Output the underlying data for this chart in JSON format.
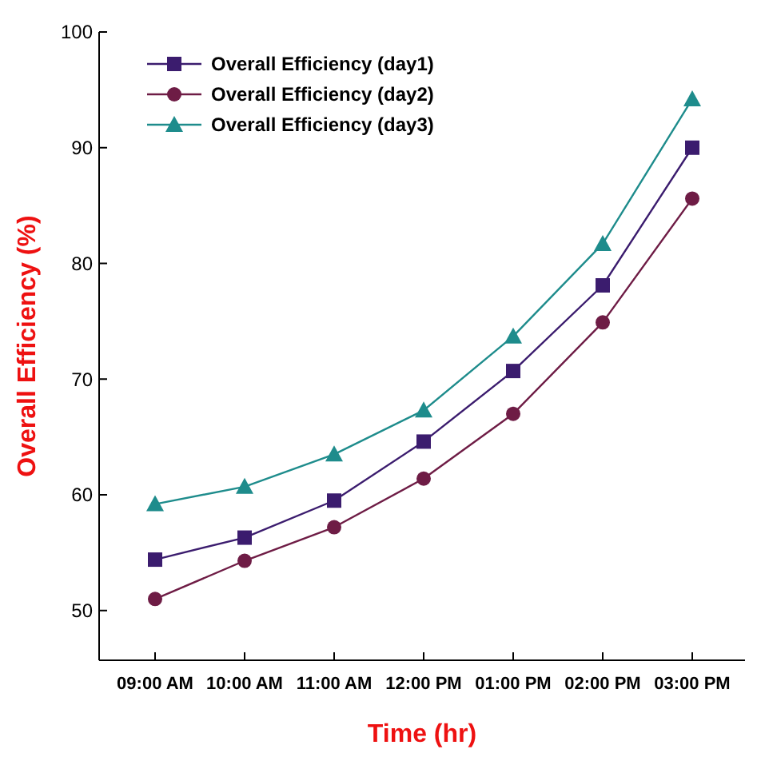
{
  "chart_data": {
    "type": "line",
    "xlabel": "Time (hr)",
    "ylabel": "Overall Efficiency (%)",
    "categories": [
      "09:00 AM",
      "10:00 AM",
      "11:00 AM",
      "12:00 PM",
      "01:00 PM",
      "02:00 PM",
      "03:00 PM"
    ],
    "ylim": [
      45.7,
      100
    ],
    "yticks": [
      50,
      60,
      70,
      80,
      90,
      100
    ],
    "grid": false,
    "legend": "top left",
    "series": [
      {
        "name": "Overall Efficiency (day1)",
        "color": "#3b1c6e",
        "marker": "square",
        "values": [
          54.4,
          56.3,
          59.5,
          64.6,
          70.7,
          78.1,
          90.0
        ]
      },
      {
        "name": "Overall Efficiency (day2)",
        "color": "#6e1c45",
        "marker": "circle",
        "values": [
          51.0,
          54.3,
          57.2,
          61.4,
          67.0,
          74.9,
          85.6
        ]
      },
      {
        "name": "Overall Efficiency (day3)",
        "color": "#1e8c8c",
        "marker": "triangle",
        "values": [
          59.2,
          60.7,
          63.5,
          67.3,
          73.7,
          81.7,
          94.2
        ]
      }
    ]
  }
}
